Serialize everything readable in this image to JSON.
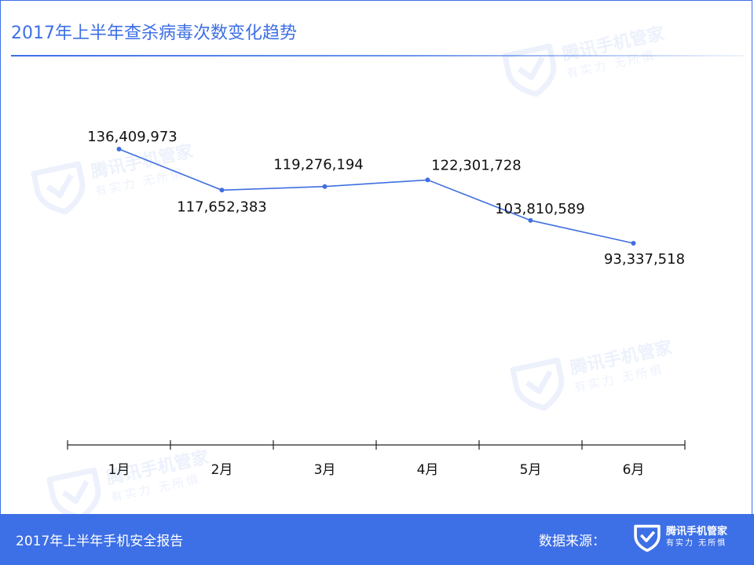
{
  "title": "2017年上半年查杀病毒次数变化趋势",
  "watermark": {
    "brand": "腾讯手机管家",
    "slogan": "有实力  无所惧"
  },
  "footer": {
    "report": "2017年上半年手机安全报告",
    "source_label": "数据来源：",
    "logo_brand": "腾讯手机管家",
    "logo_slogan": "有实力  无所惧"
  },
  "colors": {
    "accent": "#3d6fe6",
    "line": "#3f6fe0",
    "axis": "#222222"
  },
  "icons": {
    "watermark": "shield-check-icon",
    "footer_logo": "shield-check-icon"
  },
  "chart_data": {
    "type": "line",
    "categories": [
      "1月",
      "2月",
      "3月",
      "4月",
      "5月",
      "6月"
    ],
    "values": [
      136409973,
      117652383,
      119276194,
      122301728,
      103810589,
      93337518
    ],
    "data_labels": [
      "136,409,973",
      "117,652,383",
      "119,276,194",
      "122,301,728",
      "103,810,589",
      "93,337,518"
    ],
    "title": "2017年上半年查杀病毒次数变化趋势",
    "xlabel": "",
    "ylabel": "",
    "grid": false,
    "legend": "none"
  }
}
